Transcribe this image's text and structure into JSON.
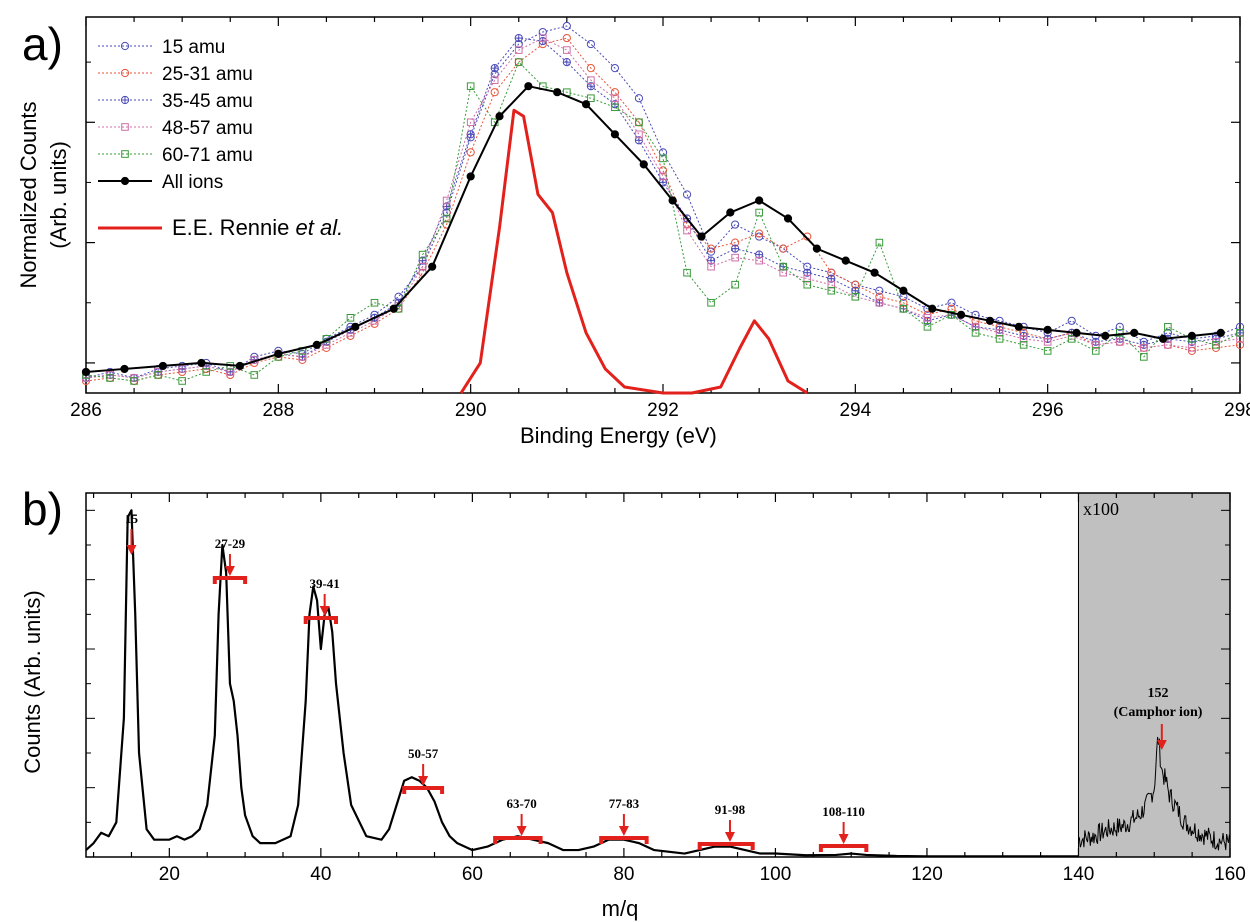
{
  "colors": {
    "black": "#000000",
    "red": "#e3211c",
    "blue": "#4a4ab8",
    "orange": "#e8553a",
    "pink": "#cf6fa8",
    "green": "#3a9a3a",
    "inset": "#c0c0c0"
  },
  "panel_a": {
    "panel_label": "a)",
    "ylabel_line1": "Normalized Counts",
    "ylabel_line2": "(Arb. units)",
    "xlabel": "Binding Energy (eV)",
    "rennie_prefix": "E.E. Rennie ",
    "rennie_suffix": "et al."
  },
  "panel_b": {
    "panel_label": "b)",
    "ylabel": "Counts (Arb. units)",
    "xlabel": "m/q",
    "inset_label": "x100",
    "camphor_line1": "152",
    "camphor_line2": "(Camphor ion)"
  },
  "chart_data": [
    {
      "type": "line",
      "xlabel": "Binding Energy (eV)",
      "ylabel": "Normalized Counts (Arb. units)",
      "xlim": [
        286,
        298
      ],
      "ylim": [
        0,
        1.25
      ],
      "x_ticks": [
        286,
        288,
        290,
        292,
        294,
        296,
        298
      ],
      "legend_position": "top-left",
      "series": [
        {
          "name": "15 amu",
          "color": "#4a4ab8",
          "marker": "circle",
          "style": "dotted",
          "x": [
            286.0,
            286.25,
            286.5,
            286.75,
            287.0,
            287.25,
            287.5,
            287.75,
            288.0,
            288.25,
            288.5,
            288.75,
            289.0,
            289.25,
            289.5,
            289.75,
            290.0,
            290.25,
            290.5,
            290.75,
            291.0,
            291.25,
            291.5,
            291.75,
            292.0,
            292.25,
            292.5,
            292.75,
            293.0,
            293.25,
            293.5,
            293.75,
            294.0,
            294.25,
            294.5,
            294.75,
            295.0,
            295.25,
            295.5,
            295.75,
            296.0,
            296.25,
            296.5,
            296.75,
            297.0,
            297.25,
            297.5,
            297.75,
            298.0
          ],
          "y": [
            0.05,
            0.07,
            0.05,
            0.08,
            0.09,
            0.1,
            0.07,
            0.12,
            0.14,
            0.13,
            0.18,
            0.22,
            0.26,
            0.32,
            0.42,
            0.6,
            0.85,
            1.06,
            1.16,
            1.2,
            1.22,
            1.16,
            1.08,
            0.98,
            0.8,
            0.66,
            0.47,
            0.56,
            0.52,
            0.48,
            0.42,
            0.4,
            0.36,
            0.34,
            0.32,
            0.28,
            0.3,
            0.26,
            0.24,
            0.22,
            0.2,
            0.24,
            0.19,
            0.22,
            0.17,
            0.2,
            0.18,
            0.19,
            0.22
          ]
        },
        {
          "name": "25-31 amu",
          "color": "#e8553a",
          "marker": "circle",
          "style": "dotted",
          "x": [
            286.0,
            286.25,
            286.5,
            286.75,
            287.0,
            287.25,
            287.5,
            287.75,
            288.0,
            288.25,
            288.5,
            288.75,
            289.0,
            289.25,
            289.5,
            289.75,
            290.0,
            290.25,
            290.5,
            290.75,
            291.0,
            291.25,
            291.5,
            291.75,
            292.0,
            292.25,
            292.5,
            292.75,
            293.0,
            293.25,
            293.5,
            293.75,
            294.0,
            294.25,
            294.5,
            294.75,
            295.0,
            295.25,
            295.5,
            295.75,
            296.0,
            296.25,
            296.5,
            296.75,
            297.0,
            297.25,
            297.5,
            297.75,
            298.0
          ],
          "y": [
            0.04,
            0.05,
            0.04,
            0.06,
            0.07,
            0.08,
            0.06,
            0.1,
            0.12,
            0.11,
            0.15,
            0.19,
            0.23,
            0.28,
            0.4,
            0.56,
            0.8,
            1.0,
            1.1,
            1.16,
            1.18,
            1.08,
            1.0,
            0.9,
            0.74,
            0.56,
            0.48,
            0.5,
            0.53,
            0.48,
            0.52,
            0.4,
            0.36,
            0.32,
            0.3,
            0.26,
            0.28,
            0.24,
            0.22,
            0.2,
            0.18,
            0.2,
            0.16,
            0.17,
            0.15,
            0.16,
            0.14,
            0.15,
            0.16
          ]
        },
        {
          "name": "35-45 amu",
          "color": "#4a4ab8",
          "marker": "crossed-circle",
          "style": "dotted",
          "x": [
            286.0,
            286.25,
            286.5,
            286.75,
            287.0,
            287.25,
            287.5,
            287.75,
            288.0,
            288.25,
            288.5,
            288.75,
            289.0,
            289.25,
            289.5,
            289.75,
            290.0,
            290.25,
            290.5,
            290.75,
            291.0,
            291.25,
            291.5,
            291.75,
            292.0,
            292.25,
            292.5,
            292.75,
            293.0,
            293.25,
            293.5,
            293.75,
            294.0,
            294.25,
            294.5,
            294.75,
            295.0,
            295.25,
            295.5,
            295.75,
            296.0,
            296.25,
            296.5,
            296.75,
            297.0,
            297.25,
            297.5,
            297.75,
            298.0
          ],
          "y": [
            0.05,
            0.06,
            0.05,
            0.07,
            0.08,
            0.09,
            0.07,
            0.11,
            0.13,
            0.12,
            0.17,
            0.21,
            0.25,
            0.3,
            0.44,
            0.62,
            0.86,
            1.08,
            1.18,
            1.17,
            1.1,
            1.02,
            0.96,
            0.84,
            0.7,
            0.58,
            0.44,
            0.48,
            0.46,
            0.42,
            0.4,
            0.38,
            0.34,
            0.3,
            0.28,
            0.24,
            0.26,
            0.22,
            0.21,
            0.19,
            0.18,
            0.2,
            0.17,
            0.18,
            0.16,
            0.18,
            0.17,
            0.18,
            0.2
          ]
        },
        {
          "name": "48-57 amu",
          "color": "#cf6fa8",
          "marker": "square",
          "style": "dotted",
          "x": [
            286.0,
            286.25,
            286.5,
            286.75,
            287.0,
            287.25,
            287.5,
            287.75,
            288.0,
            288.25,
            288.5,
            288.75,
            289.0,
            289.25,
            289.5,
            289.75,
            290.0,
            290.25,
            290.5,
            290.75,
            291.0,
            291.25,
            291.5,
            291.75,
            292.0,
            292.25,
            292.5,
            292.75,
            293.0,
            293.25,
            293.5,
            293.75,
            294.0,
            294.25,
            294.5,
            294.75,
            295.0,
            295.25,
            295.5,
            295.75,
            296.0,
            296.25,
            296.5,
            296.75,
            297.0,
            297.25,
            297.5,
            297.75,
            298.0
          ],
          "y": [
            0.05,
            0.06,
            0.05,
            0.07,
            0.08,
            0.09,
            0.07,
            0.11,
            0.13,
            0.12,
            0.16,
            0.2,
            0.24,
            0.29,
            0.42,
            0.64,
            0.9,
            1.04,
            1.14,
            1.18,
            1.14,
            1.04,
            0.98,
            0.86,
            0.72,
            0.54,
            0.42,
            0.45,
            0.44,
            0.4,
            0.38,
            0.36,
            0.32,
            0.3,
            0.28,
            0.25,
            0.26,
            0.22,
            0.2,
            0.18,
            0.17,
            0.19,
            0.16,
            0.17,
            0.15,
            0.16,
            0.15,
            0.17,
            0.18
          ]
        },
        {
          "name": "60-71 amu",
          "color": "#3a9a3a",
          "marker": "square",
          "style": "dotted",
          "x": [
            286.0,
            286.25,
            286.5,
            286.75,
            287.0,
            287.25,
            287.5,
            287.75,
            288.0,
            288.25,
            288.5,
            288.75,
            289.0,
            289.25,
            289.5,
            289.75,
            290.0,
            290.25,
            290.5,
            290.75,
            291.0,
            291.25,
            291.5,
            291.75,
            292.0,
            292.25,
            292.5,
            292.75,
            293.0,
            293.25,
            293.5,
            293.75,
            294.0,
            294.25,
            294.5,
            294.75,
            295.0,
            295.25,
            295.5,
            295.75,
            296.0,
            296.25,
            296.5,
            296.75,
            297.0,
            297.25,
            297.5,
            297.75,
            298.0
          ],
          "y": [
            0.06,
            0.05,
            0.04,
            0.06,
            0.04,
            0.07,
            0.09,
            0.06,
            0.12,
            0.14,
            0.18,
            0.25,
            0.3,
            0.28,
            0.46,
            0.58,
            1.02,
            0.9,
            1.1,
            1.02,
            1.0,
            0.98,
            0.95,
            0.9,
            0.78,
            0.4,
            0.3,
            0.36,
            0.6,
            0.42,
            0.36,
            0.34,
            0.32,
            0.5,
            0.28,
            0.22,
            0.26,
            0.2,
            0.18,
            0.16,
            0.14,
            0.18,
            0.14,
            0.2,
            0.12,
            0.22,
            0.18,
            0.16,
            0.2
          ]
        },
        {
          "name": "All ions",
          "color": "#000000",
          "marker": "filled-circle",
          "style": "solid",
          "x": [
            286.0,
            286.4,
            286.8,
            287.2,
            287.6,
            288.0,
            288.4,
            288.8,
            289.2,
            289.6,
            290.0,
            290.3,
            290.6,
            290.9,
            291.2,
            291.5,
            291.8,
            292.1,
            292.4,
            292.7,
            293.0,
            293.3,
            293.6,
            293.9,
            294.2,
            294.5,
            294.8,
            295.1,
            295.4,
            295.7,
            296.0,
            296.3,
            296.6,
            296.9,
            297.2,
            297.5,
            297.8
          ],
          "y": [
            0.07,
            0.08,
            0.09,
            0.1,
            0.09,
            0.13,
            0.16,
            0.22,
            0.28,
            0.42,
            0.72,
            0.92,
            1.02,
            1.0,
            0.96,
            0.86,
            0.76,
            0.64,
            0.52,
            0.6,
            0.64,
            0.58,
            0.48,
            0.44,
            0.4,
            0.34,
            0.28,
            0.26,
            0.24,
            0.22,
            0.21,
            0.2,
            0.19,
            0.2,
            0.18,
            0.19,
            0.2
          ]
        },
        {
          "name": "E.E. Rennie et al.",
          "color": "#e3211c",
          "marker": "none",
          "style": "solid",
          "x": [
            289.9,
            290.1,
            290.3,
            290.45,
            290.55,
            290.7,
            290.85,
            291.0,
            291.2,
            291.4,
            291.6,
            291.8,
            292.0,
            292.3,
            292.6,
            292.8,
            292.95,
            293.1,
            293.3,
            293.5
          ],
          "y": [
            0.0,
            0.1,
            0.55,
            0.94,
            0.92,
            0.66,
            0.6,
            0.4,
            0.2,
            0.08,
            0.02,
            0.01,
            0.0,
            0.0,
            0.02,
            0.15,
            0.24,
            0.18,
            0.04,
            0.0
          ]
        }
      ]
    },
    {
      "type": "line",
      "xlabel": "m/q",
      "ylabel": "Counts (Arb. units)",
      "xlim": [
        9,
        160
      ],
      "ylim": [
        0,
        1.05
      ],
      "x_ticks": [
        20,
        40,
        60,
        80,
        100,
        120,
        140,
        160
      ],
      "series": [
        {
          "name": "",
          "color": "#000000",
          "x": [
            9,
            10,
            11,
            12,
            13,
            14,
            14.5,
            15,
            15.5,
            16,
            17,
            18,
            20,
            21,
            22,
            23,
            24,
            25,
            26,
            26.5,
            27,
            27.5,
            28,
            28.5,
            29,
            29.5,
            30,
            31,
            32,
            34,
            36,
            37,
            38,
            38.5,
            39,
            39.5,
            40,
            40.5,
            41,
            41.5,
            42,
            43,
            44,
            46,
            48,
            49,
            50,
            51,
            52,
            53,
            54,
            55,
            56,
            57,
            58,
            60,
            62,
            64,
            66,
            68,
            70,
            72,
            74,
            76,
            78,
            80,
            82,
            84,
            88,
            90,
            92,
            94,
            96,
            98,
            100,
            104,
            108,
            110,
            112,
            116,
            120,
            125,
            130,
            135,
            140
          ],
          "y": [
            0.02,
            0.04,
            0.07,
            0.06,
            0.1,
            0.4,
            0.98,
            1.0,
            0.7,
            0.3,
            0.08,
            0.05,
            0.05,
            0.06,
            0.05,
            0.06,
            0.08,
            0.15,
            0.35,
            0.7,
            0.9,
            0.82,
            0.5,
            0.45,
            0.35,
            0.2,
            0.12,
            0.06,
            0.04,
            0.04,
            0.06,
            0.15,
            0.45,
            0.7,
            0.78,
            0.74,
            0.6,
            0.7,
            0.72,
            0.65,
            0.5,
            0.3,
            0.15,
            0.06,
            0.05,
            0.08,
            0.15,
            0.22,
            0.23,
            0.22,
            0.2,
            0.16,
            0.1,
            0.06,
            0.04,
            0.02,
            0.03,
            0.05,
            0.06,
            0.05,
            0.04,
            0.02,
            0.02,
            0.03,
            0.05,
            0.05,
            0.04,
            0.02,
            0.01,
            0.02,
            0.03,
            0.03,
            0.02,
            0.01,
            0.01,
            0.005,
            0.006,
            0.01,
            0.006,
            0.003,
            0.002,
            0.002,
            0.002,
            0.002,
            0.002
          ]
        },
        {
          "name": "",
          "color": "#000000",
          "scale": "x100",
          "x": [
            140,
            142,
            144,
            146,
            148,
            149,
            150,
            150.5,
            151,
            151.5,
            152,
            153,
            154,
            156,
            158,
            160
          ],
          "y": [
            0.05,
            0.06,
            0.08,
            0.09,
            0.12,
            0.15,
            0.2,
            0.35,
            0.25,
            0.22,
            0.18,
            0.14,
            0.1,
            0.07,
            0.05,
            0.04
          ]
        }
      ],
      "annotations": [
        {
          "text": "15",
          "x": 15,
          "range": null
        },
        {
          "text": "27-29",
          "x": 28,
          "range": [
            26,
            30
          ]
        },
        {
          "text": "39-41",
          "x": 40.5,
          "range": [
            38,
            42
          ]
        },
        {
          "text": "50-57",
          "x": 53.5,
          "range": [
            51,
            56
          ]
        },
        {
          "text": "63-70",
          "x": 66.5,
          "range": [
            63,
            69
          ]
        },
        {
          "text": "77-83",
          "x": 80,
          "range": [
            77,
            83
          ]
        },
        {
          "text": "91-98",
          "x": 94,
          "range": [
            90,
            97
          ]
        },
        {
          "text": "108-110",
          "x": 109,
          "range": [
            106,
            112
          ]
        }
      ],
      "inset": {
        "label": "x100",
        "xrange": [
          140,
          160
        ]
      }
    }
  ]
}
